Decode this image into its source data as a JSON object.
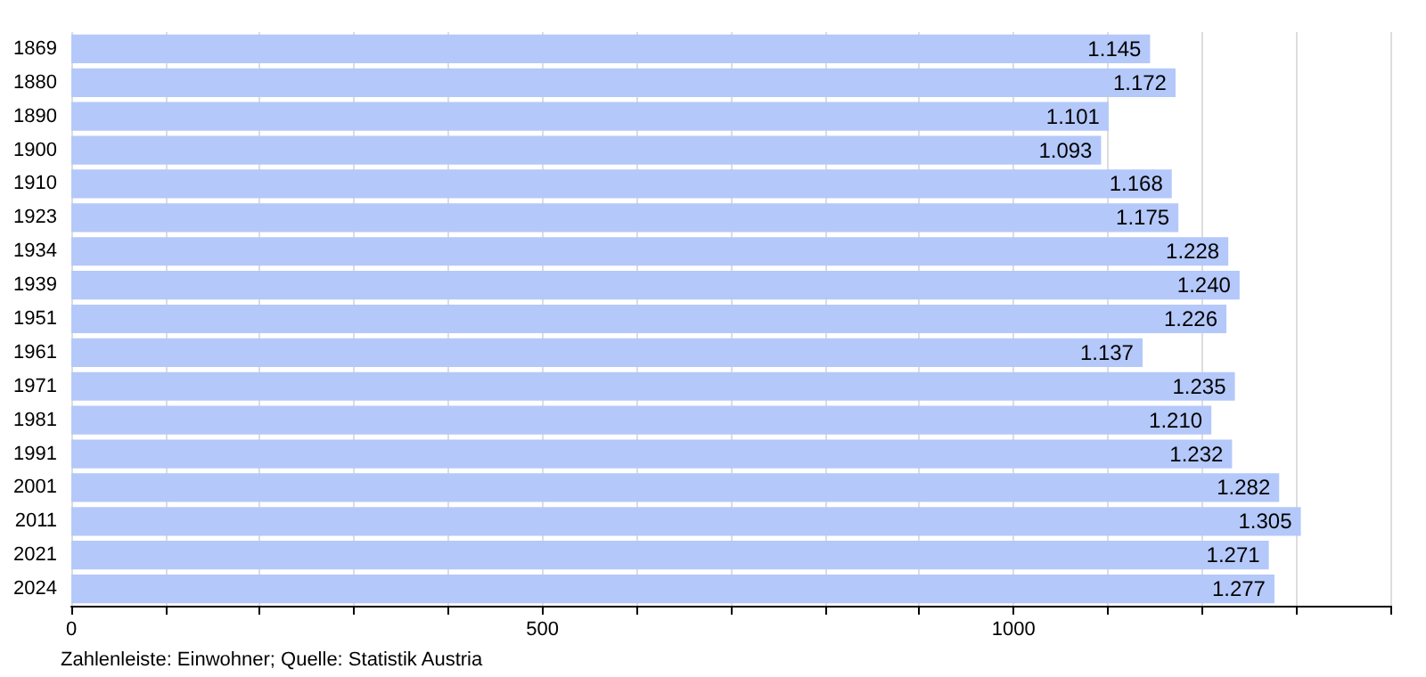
{
  "chart_data": {
    "type": "bar",
    "orientation": "horizontal",
    "categories": [
      "1869",
      "1880",
      "1890",
      "1900",
      "1910",
      "1923",
      "1934",
      "1939",
      "1951",
      "1961",
      "1971",
      "1981",
      "1991",
      "2001",
      "2011",
      "2021",
      "2024"
    ],
    "values": [
      1145,
      1172,
      1101,
      1093,
      1168,
      1175,
      1228,
      1240,
      1226,
      1137,
      1235,
      1210,
      1232,
      1282,
      1305,
      1271,
      1277
    ],
    "value_labels": [
      "1.145",
      "1.172",
      "1.101",
      "1.093",
      "1.168",
      "1.175",
      "1.228",
      "1.240",
      "1.226",
      "1.137",
      "1.235",
      "1.210",
      "1.232",
      "1.282",
      "1.305",
      "1.271",
      "1.277"
    ],
    "color": "#b4c8fa",
    "xlim": [
      0,
      1400
    ],
    "xticks": [
      0,
      {
        "value": 100,
        "label": null
      },
      {
        "value": 200,
        "label": null
      },
      {
        "value": 300,
        "label": null
      },
      {
        "value": 400,
        "label": null
      },
      500,
      {
        "value": 600,
        "label": null
      },
      {
        "value": 700,
        "label": null
      },
      {
        "value": 800,
        "label": null
      },
      {
        "value": 900,
        "label": null
      },
      1000,
      {
        "value": 1100,
        "label": null
      },
      {
        "value": 1200,
        "label": null
      },
      {
        "value": 1300,
        "label": null
      },
      {
        "value": 1400,
        "label": null
      }
    ],
    "grid": "x",
    "annotations": [
      "Zahlenleiste: Einwohner; Quelle: Statistik Austria"
    ]
  }
}
